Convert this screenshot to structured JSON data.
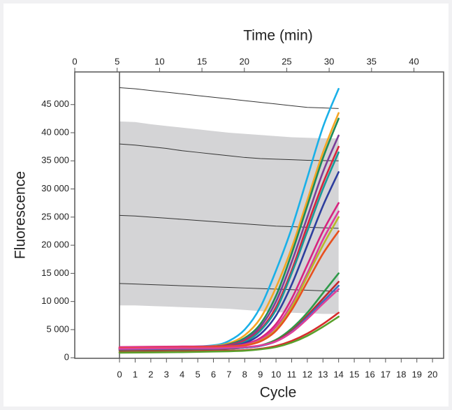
{
  "chart_data": {
    "type": "line",
    "title": "Time (min)",
    "xlabel": "Cycle",
    "ylabel": "Fluorescence",
    "x": [
      0,
      4,
      6,
      7,
      8,
      9,
      10,
      11,
      12,
      13,
      14
    ],
    "xlim": [
      -2.86,
      20.71
    ],
    "xticks": [
      0,
      1,
      2,
      3,
      4,
      5,
      6,
      7,
      8,
      9,
      10,
      11,
      12,
      13,
      14,
      15,
      16,
      17,
      18,
      19,
      20
    ],
    "x2lim": [
      0,
      43.5
    ],
    "x2ticks": [
      0,
      5,
      10,
      15,
      20,
      25,
      30,
      35,
      40
    ],
    "ylim": [
      -100,
      50800
    ],
    "yticks": [
      0,
      {
        "value": 5000,
        "label": "5 000"
      },
      {
        "value": 10000,
        "label": "10 000"
      },
      {
        "value": 15000,
        "label": "15 000"
      },
      {
        "value": 20000,
        "label": "20 000"
      },
      {
        "value": 25000,
        "label": "25 000"
      },
      {
        "value": 30000,
        "label": "30 000"
      },
      {
        "value": 35000,
        "label": "35 000"
      },
      {
        "value": 40000,
        "label": "40 000"
      },
      {
        "value": 45000,
        "label": "45 000"
      }
    ],
    "series": [
      {
        "color": "#1ab0e8",
        "values": [
          1500,
          1900,
          2200,
          3000,
          5000,
          9000,
          15500,
          23000,
          32000,
          41000,
          47800
        ]
      },
      {
        "color": "#f5a623",
        "values": [
          1600,
          1900,
          2100,
          2600,
          4000,
          7000,
          12500,
          19500,
          28000,
          36500,
          43500
        ]
      },
      {
        "color": "#1e8c5a",
        "values": [
          1500,
          1800,
          2000,
          2400,
          3500,
          6000,
          11000,
          18500,
          27000,
          35500,
          42500
        ]
      },
      {
        "color": "#7b3f98",
        "values": [
          1700,
          1900,
          2000,
          2300,
          3200,
          5500,
          10000,
          17000,
          25000,
          33000,
          39500
        ]
      },
      {
        "color": "#d7263d",
        "values": [
          1800,
          1900,
          2000,
          2200,
          3000,
          5000,
          9000,
          15500,
          23500,
          31000,
          37500
        ]
      },
      {
        "color": "#1a9a9a",
        "values": [
          1600,
          1800,
          1900,
          2100,
          2800,
          4800,
          8500,
          15000,
          22500,
          30000,
          36500
        ]
      },
      {
        "color": "#2d3e9e",
        "values": [
          1700,
          1900,
          2000,
          2100,
          2600,
          4200,
          7500,
          13000,
          20000,
          27000,
          33000
        ]
      },
      {
        "color": "#d6247f",
        "values": [
          1900,
          2000,
          2000,
          2100,
          2400,
          3500,
          6000,
          10500,
          16500,
          22500,
          27500
        ]
      },
      {
        "color": "#e03a9a",
        "values": [
          1800,
          1900,
          1900,
          2000,
          2300,
          3200,
          5500,
          9500,
          15000,
          21000,
          26000
        ]
      },
      {
        "color": "#b7b92c",
        "values": [
          1600,
          1700,
          1800,
          1900,
          2200,
          3000,
          5000,
          9000,
          14500,
          20000,
          25000
        ]
      },
      {
        "color": "#e8501e",
        "values": [
          1700,
          1800,
          1900,
          2000,
          2200,
          2900,
          4800,
          8500,
          13500,
          18500,
          22500
        ]
      },
      {
        "color": "#2e9a4a",
        "values": [
          1300,
          1400,
          1500,
          1600,
          1800,
          2200,
          3200,
          5200,
          8000,
          11500,
          15000
        ]
      },
      {
        "color": "#c0282d",
        "values": [
          1400,
          1500,
          1500,
          1600,
          1800,
          2100,
          3000,
          4800,
          7500,
          10500,
          13500
        ]
      },
      {
        "color": "#3b6fc0",
        "values": [
          1500,
          1600,
          1600,
          1700,
          1800,
          2100,
          2900,
          4600,
          7200,
          10000,
          12800
        ]
      },
      {
        "color": "#e0409a",
        "values": [
          1600,
          1700,
          1700,
          1800,
          1900,
          2200,
          2900,
          4500,
          6900,
          9600,
          12200
        ]
      },
      {
        "color": "#d62d2d",
        "values": [
          1000,
          1100,
          1200,
          1250,
          1350,
          1600,
          2100,
          3000,
          4300,
          6000,
          8000
        ]
      },
      {
        "color": "#5aa02c",
        "values": [
          900,
          1000,
          1100,
          1150,
          1250,
          1500,
          1900,
          2700,
          3900,
          5500,
          7300
        ]
      }
    ],
    "step_x": [
      0,
      1,
      2,
      3,
      4,
      5,
      6,
      7,
      8,
      9,
      10,
      11,
      12,
      13,
      14
    ],
    "band": {
      "color": "#d4d4d6",
      "upper": [
        42000,
        41900,
        41500,
        41200,
        40900,
        40600,
        40300,
        40000,
        39800,
        39600,
        39400,
        39200,
        39100,
        39000,
        39000
      ],
      "lower": [
        9300,
        9300,
        9200,
        9100,
        9000,
        8900,
        8800,
        8700,
        8500,
        8300,
        8100,
        8000,
        7900,
        7800,
        7800
      ]
    },
    "thresholds": [
      {
        "color": "#333333",
        "values": [
          48000,
          47800,
          47500,
          47200,
          46900,
          46600,
          46300,
          46000,
          45700,
          45400,
          45100,
          44800,
          44500,
          44400,
          44300
        ]
      },
      {
        "color": "#333333",
        "values": [
          38000,
          37800,
          37500,
          37200,
          36800,
          36500,
          36200,
          35900,
          35600,
          35400,
          35300,
          35200,
          35100,
          35050,
          35000
        ]
      },
      {
        "color": "#333333",
        "values": [
          25300,
          25200,
          25000,
          24800,
          24600,
          24400,
          24200,
          24000,
          23800,
          23600,
          23400,
          23300,
          23200,
          23100,
          23000
        ]
      },
      {
        "color": "#333333",
        "values": [
          13200,
          13100,
          13000,
          12900,
          12800,
          12700,
          12600,
          12500,
          12400,
          12300,
          12200,
          12100,
          12000,
          11900,
          11800
        ]
      }
    ]
  }
}
